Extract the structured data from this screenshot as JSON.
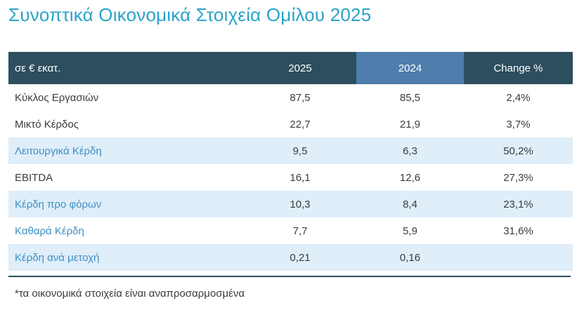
{
  "title": "Συνοπτικά Οικονομικά Στοιχεία Ομίλου 2025",
  "table": {
    "headers": {
      "label": "σε € εκατ.",
      "year_2025": "2025",
      "year_2024": "2024",
      "change": "Change %"
    },
    "rows": [
      {
        "label": "Κύκλος Εργασιών",
        "v2025": "87,5",
        "v2024": "85,5",
        "change": "2,4%"
      },
      {
        "label": "Μικτό Κέρδος",
        "v2025": "22,7",
        "v2024": "21,9",
        "change": "3,7%"
      },
      {
        "label": "Λειτουργικά Κέρδη",
        "v2025": "9,5",
        "v2024": "6,3",
        "change": "50,2%"
      },
      {
        "label": "EBITDA",
        "v2025": "16,1",
        "v2024": "12,6",
        "change": "27,3%"
      },
      {
        "label": "Κέρδη προ φόρων",
        "v2025": "10,3",
        "v2024": "8,4",
        "change": "23,1%"
      },
      {
        "label": "Καθαρά Κέρδη",
        "v2025": "7,7",
        "v2024": "5,9",
        "change": "31,6%"
      },
      {
        "label": "Κέρδη ανά μετοχή",
        "v2025": "0,21",
        "v2024": "0,16",
        "change": ""
      }
    ]
  },
  "footnote": "*τα οικονομικά στοιχεία είναι αναπροσαρμοσμένα",
  "colors": {
    "title": "#2aa3c8",
    "header_bg": "#2c4e5e",
    "header_highlight": "#4f7ead",
    "row_shade": "#dfeef9",
    "label_blue": "#3f8fc4"
  }
}
